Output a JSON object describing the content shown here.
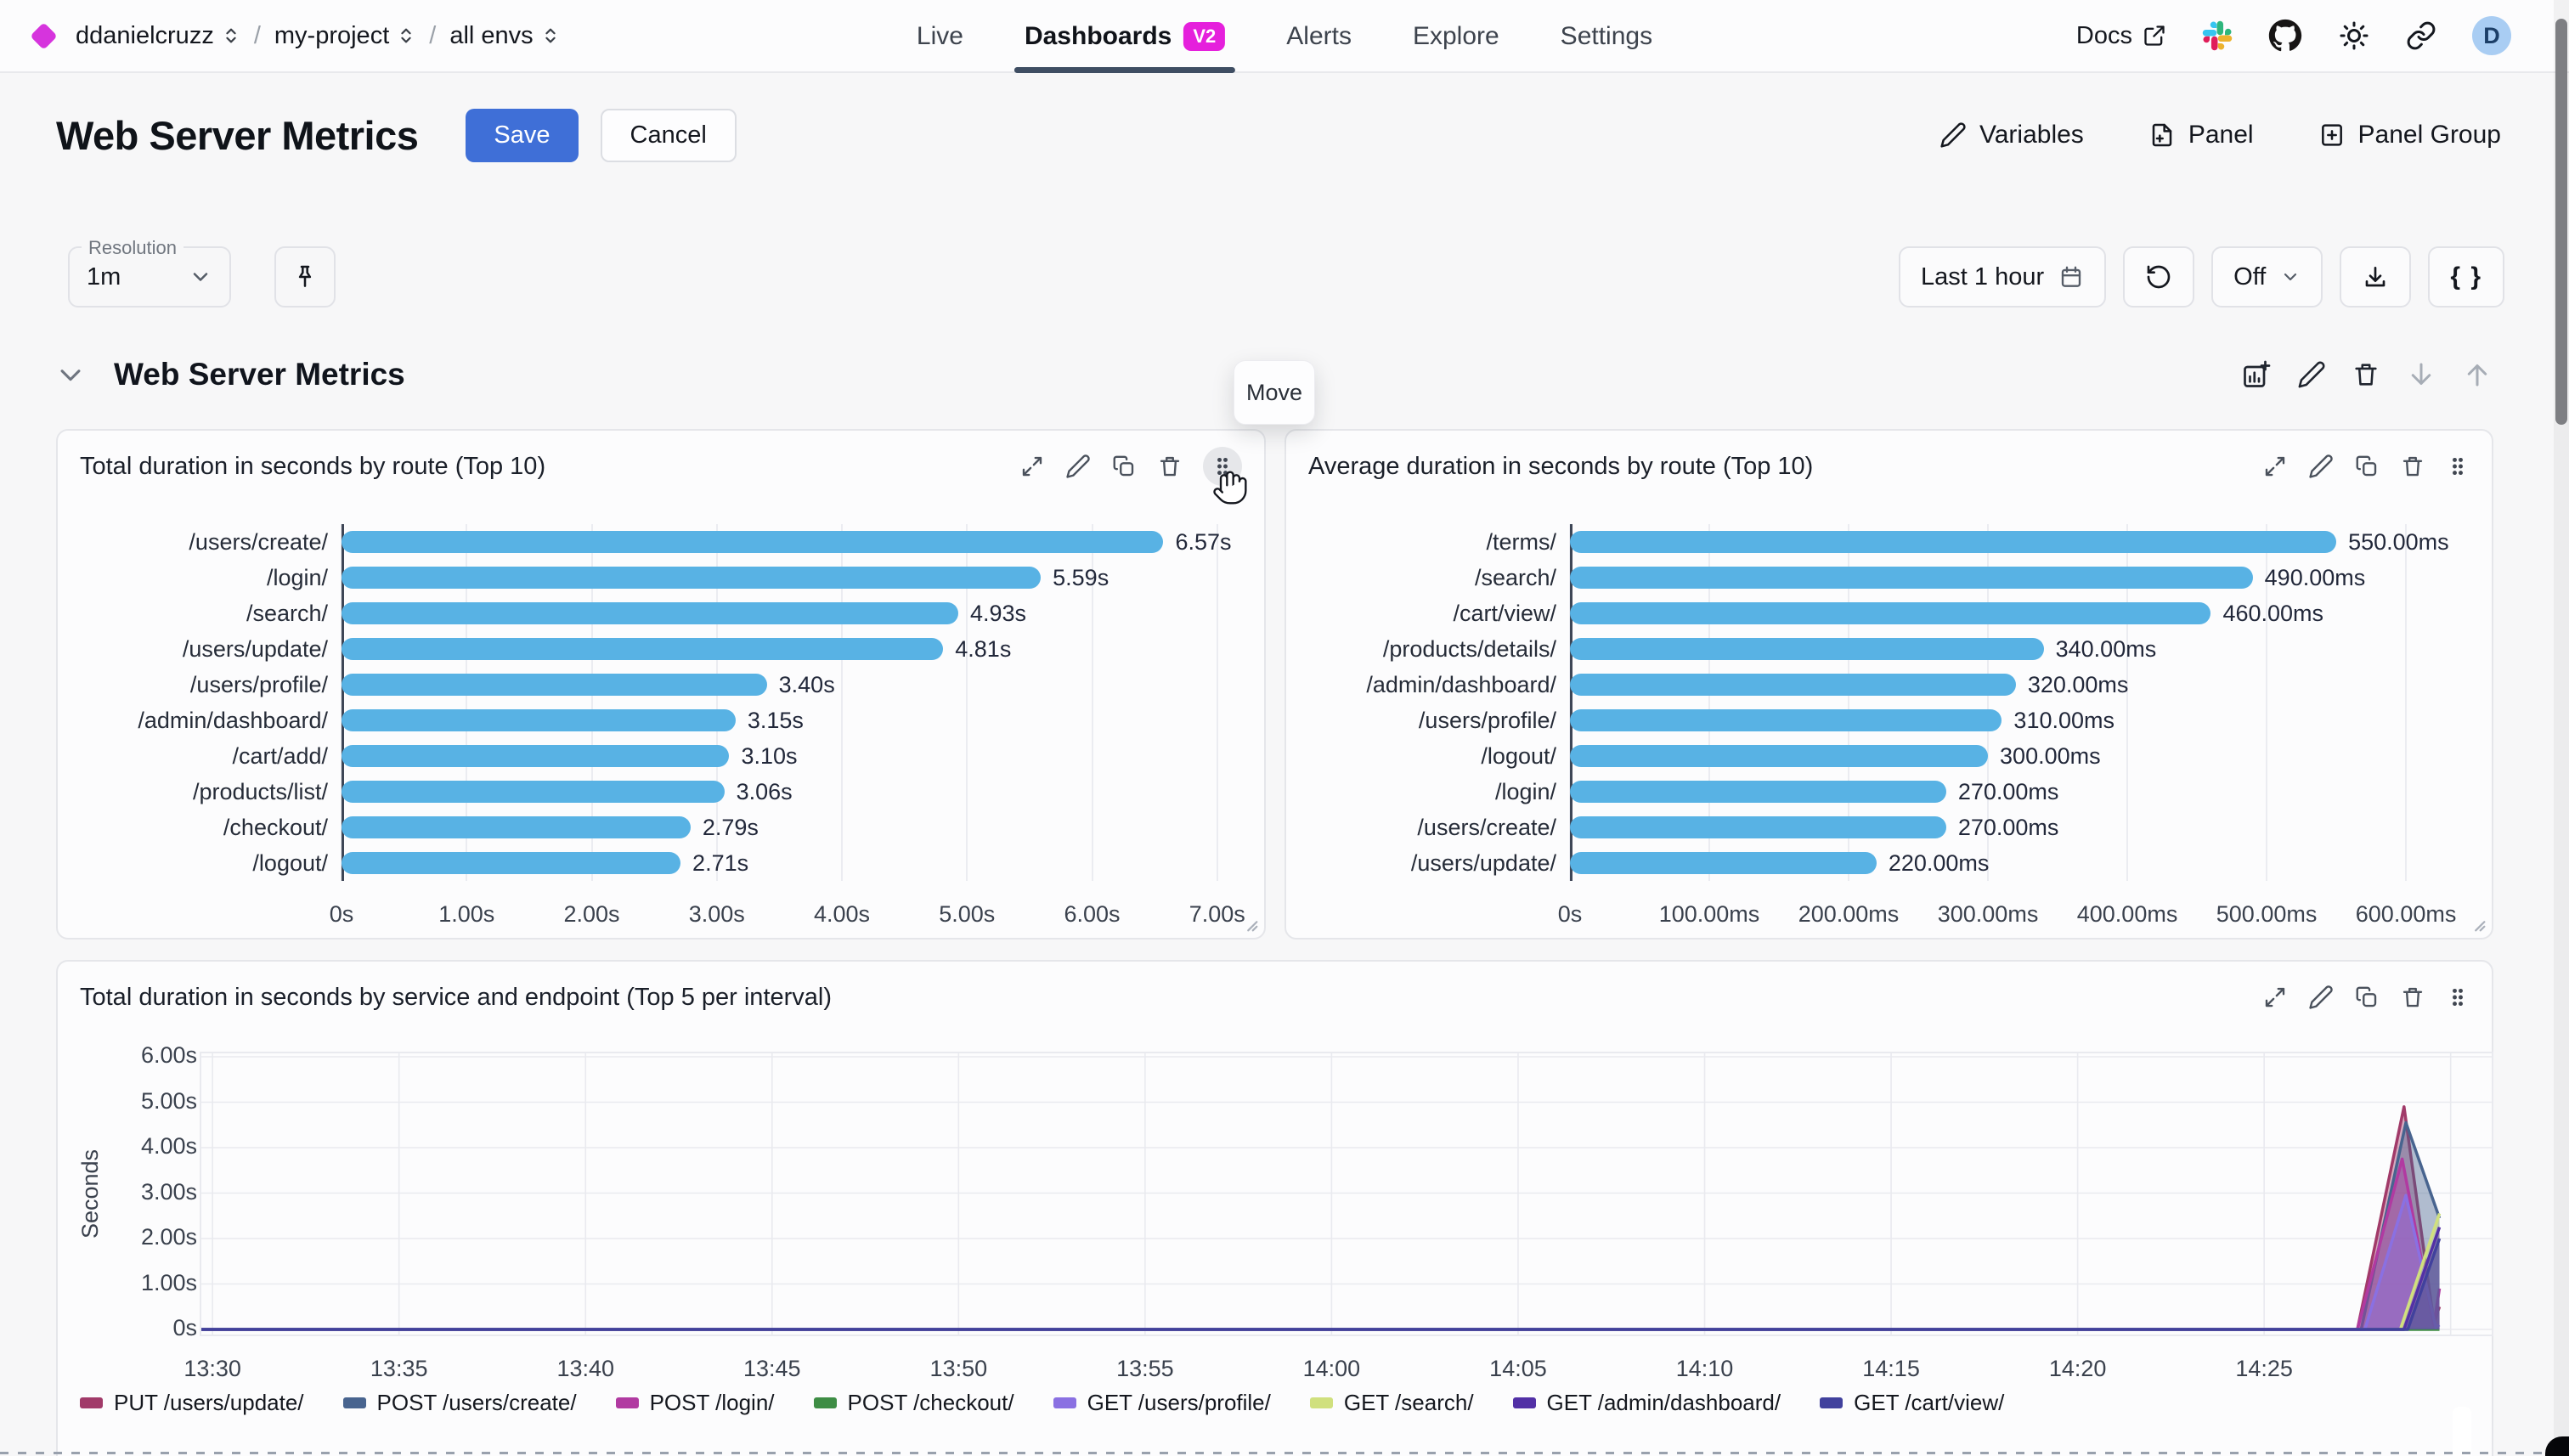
{
  "nav": {
    "breadcrumb": [
      {
        "label": "ddanielcruzz"
      },
      {
        "label": "my-project"
      },
      {
        "label": "all envs"
      }
    ],
    "separator": "/",
    "tabs": [
      {
        "label": "Live"
      },
      {
        "label": "Dashboards",
        "badge": "V2"
      },
      {
        "label": "Alerts"
      },
      {
        "label": "Explore"
      },
      {
        "label": "Settings"
      }
    ],
    "docs_label": "Docs",
    "avatar_initial": "D"
  },
  "header": {
    "title": "Web Server Metrics",
    "save_label": "Save",
    "cancel_label": "Cancel",
    "variables_label": "Variables",
    "panel_label": "Panel",
    "panel_group_label": "Panel Group"
  },
  "controls": {
    "resolution_label": "Resolution",
    "resolution_value": "1m",
    "time_range": "Last 1 hour",
    "refresh_value": "Off",
    "braces_label": "{ }"
  },
  "section": {
    "title": "Web Server Metrics",
    "move_tooltip": "Move"
  },
  "colors": {
    "accent_blue": "#3f6fd7",
    "badge_magenta": "#e520dc",
    "brand_diamond": "#d634dd",
    "bar_blue": "#58b2e4",
    "tab_underline": "#3f4e63"
  },
  "chart_data": [
    {
      "type": "bar",
      "orientation": "horizontal",
      "title": "Total duration in seconds by route (Top 10)",
      "unit": "s",
      "categories": [
        "/users/create/",
        "/login/",
        "/search/",
        "/users/update/",
        "/users/profile/",
        "/admin/dashboard/",
        "/cart/add/",
        "/products/list/",
        "/checkout/",
        "/logout/"
      ],
      "values": [
        6.57,
        5.59,
        4.93,
        4.81,
        3.4,
        3.15,
        3.1,
        3.06,
        2.79,
        2.71
      ],
      "value_labels": [
        "6.57s",
        "5.59s",
        "4.93s",
        "4.81s",
        "3.40s",
        "3.15s",
        "3.10s",
        "3.06s",
        "2.79s",
        "2.71s"
      ],
      "xmax": 7.28,
      "xticks": [
        {
          "v": 0,
          "label": "0s"
        },
        {
          "v": 1,
          "label": "1.00s"
        },
        {
          "v": 2,
          "label": "2.00s"
        },
        {
          "v": 3,
          "label": "3.00s"
        },
        {
          "v": 4,
          "label": "4.00s"
        },
        {
          "v": 5,
          "label": "5.00s"
        },
        {
          "v": 6,
          "label": "6.00s"
        },
        {
          "v": 7,
          "label": "7.00s"
        }
      ],
      "bar_color": "#58b2e4"
    },
    {
      "type": "bar",
      "orientation": "horizontal",
      "title": "Average duration in seconds by route (Top 10)",
      "unit": "ms",
      "categories": [
        "/terms/",
        "/search/",
        "/cart/view/",
        "/products/details/",
        "/admin/dashboard/",
        "/users/profile/",
        "/logout/",
        "/login/",
        "/users/create/",
        "/users/update/"
      ],
      "values": [
        550,
        490,
        460,
        340,
        320,
        310,
        300,
        270,
        270,
        220
      ],
      "value_labels": [
        "550.00ms",
        "490.00ms",
        "460.00ms",
        "340.00ms",
        "320.00ms",
        "310.00ms",
        "300.00ms",
        "270.00ms",
        "270.00ms",
        "220.00ms"
      ],
      "xmax": 653,
      "xticks": [
        {
          "v": 0,
          "label": "0s"
        },
        {
          "v": 100,
          "label": "100.00ms"
        },
        {
          "v": 200,
          "label": "200.00ms"
        },
        {
          "v": 300,
          "label": "300.00ms"
        },
        {
          "v": 400,
          "label": "400.00ms"
        },
        {
          "v": 500,
          "label": "500.00ms"
        },
        {
          "v": 600,
          "label": "600.00ms"
        }
      ],
      "bar_color": "#58b2e4"
    },
    {
      "type": "area",
      "title": "Total duration in seconds by service and endpoint (Top 5 per interval)",
      "ylabel": "Seconds",
      "ymax": 6,
      "yticks": [
        {
          "v": 0,
          "label": "0s"
        },
        {
          "v": 1,
          "label": "1.00s"
        },
        {
          "v": 2,
          "label": "2.00s"
        },
        {
          "v": 3,
          "label": "3.00s"
        },
        {
          "v": 4,
          "label": "4.00s"
        },
        {
          "v": 5,
          "label": "5.00s"
        },
        {
          "v": 6,
          "label": "6.00s"
        }
      ],
      "x_domain_minutes": [
        809.7,
        871.1
      ],
      "xticks": [
        {
          "min": 810,
          "label": "13:30"
        },
        {
          "min": 815,
          "label": "13:35"
        },
        {
          "min": 820,
          "label": "13:40"
        },
        {
          "min": 825,
          "label": "13:45"
        },
        {
          "min": 830,
          "label": "13:50"
        },
        {
          "min": 835,
          "label": "13:55"
        },
        {
          "min": 840,
          "label": "14:00"
        },
        {
          "min": 845,
          "label": "14:05"
        },
        {
          "min": 850,
          "label": "14:10"
        },
        {
          "min": 855,
          "label": "14:15"
        },
        {
          "min": 860,
          "label": "14:20"
        },
        {
          "min": 865,
          "label": "14:25"
        },
        {
          "min": 870,
          "label": ""
        }
      ],
      "series": [
        {
          "name": "PUT /users/update/",
          "color": "#a13a69",
          "points": [
            [
              809.7,
              0
            ],
            [
              867.5,
              0
            ],
            [
              868.75,
              4.9
            ],
            [
              869.55,
              0.15
            ],
            [
              869.7,
              0.5
            ]
          ]
        },
        {
          "name": "POST /users/create/",
          "color": "#48648f",
          "points": [
            [
              809.7,
              0
            ],
            [
              867.6,
              0
            ],
            [
              868.8,
              4.55
            ],
            [
              869.7,
              2.45
            ]
          ]
        },
        {
          "name": "POST /login/",
          "color": "#b13aa1",
          "points": [
            [
              809.7,
              0
            ],
            [
              867.5,
              0
            ],
            [
              868.7,
              3.75
            ],
            [
              869.55,
              0.1
            ],
            [
              869.7,
              0.9
            ]
          ]
        },
        {
          "name": "POST /checkout/",
          "color": "#3e8d45",
          "points": [
            [
              809.7,
              0
            ],
            [
              869.7,
              0
            ]
          ]
        },
        {
          "name": "GET /users/profile/",
          "color": "#8a70e2",
          "points": [
            [
              809.7,
              0
            ],
            [
              867.7,
              0
            ],
            [
              868.8,
              2.95
            ],
            [
              869.6,
              0.05
            ],
            [
              869.7,
              0.1
            ]
          ]
        },
        {
          "name": "GET /search/",
          "color": "#d0e07e",
          "points": [
            [
              809.7,
              0
            ],
            [
              868.65,
              0
            ],
            [
              869.7,
              2.55
            ]
          ]
        },
        {
          "name": "GET /admin/dashboard/",
          "color": "#5230a6",
          "points": [
            [
              809.7,
              0
            ],
            [
              868.75,
              0
            ],
            [
              869.7,
              2.25
            ]
          ]
        },
        {
          "name": "GET /cart/view/",
          "color": "#41419d",
          "points": [
            [
              809.7,
              0
            ],
            [
              868.85,
              0
            ],
            [
              869.7,
              2.0
            ]
          ]
        }
      ]
    }
  ]
}
